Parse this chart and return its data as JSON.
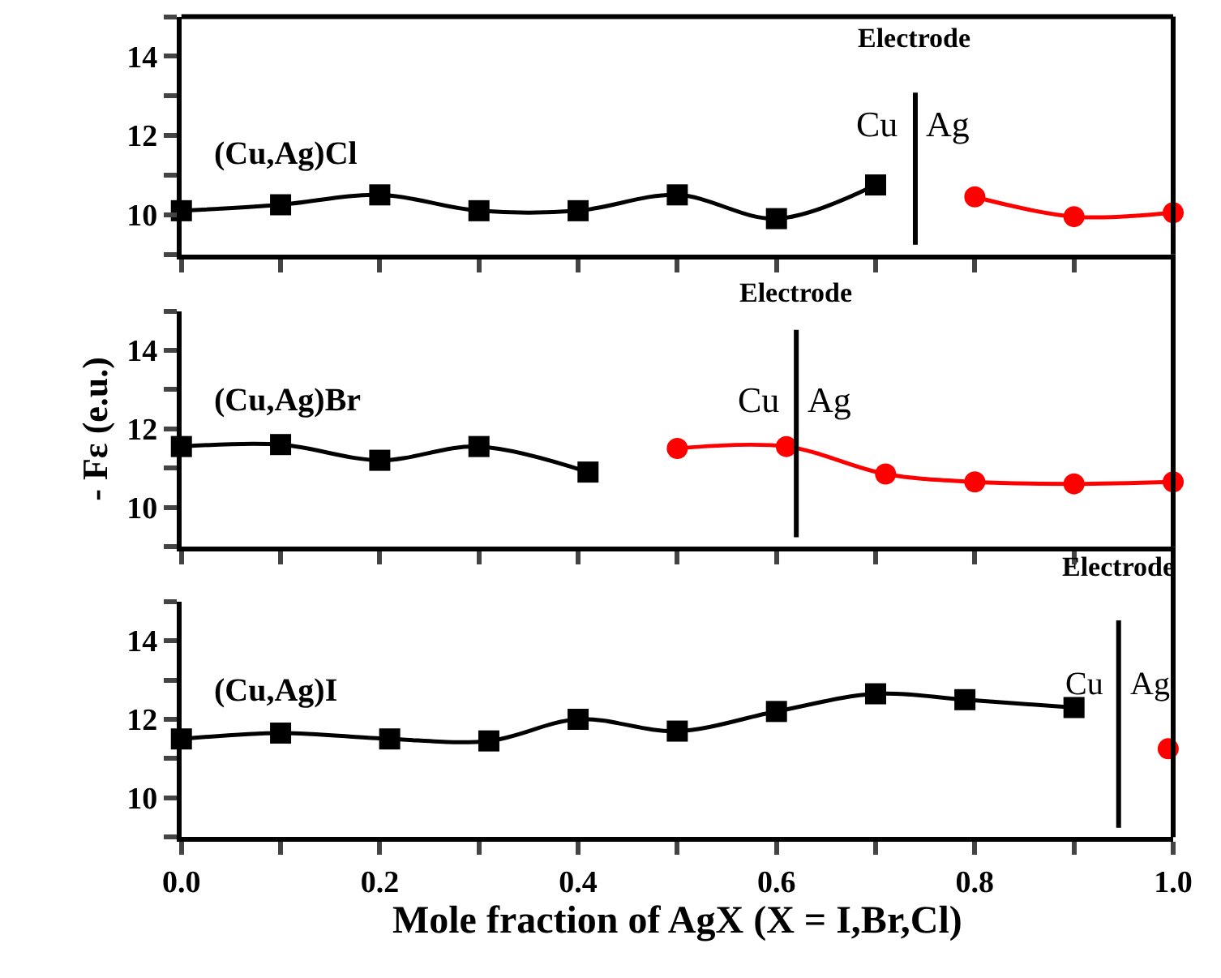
{
  "chart_data": [
    {
      "type": "line",
      "xlim": [
        0,
        1
      ],
      "ylim": [
        9,
        15
      ],
      "tick_labels": "y",
      "yticks": [
        {
          "value": 9,
          "label": null
        },
        10,
        {
          "value": 11,
          "label": null
        },
        12,
        {
          "value": 13,
          "label": null
        },
        14,
        {
          "value": 15,
          "label": null
        }
      ],
      "xticks": [
        {
          "value": 0,
          "label": null
        },
        {
          "value": 0.1,
          "label": null
        },
        {
          "value": 0.2,
          "label": null
        },
        {
          "value": 0.3,
          "label": null
        },
        {
          "value": 0.4,
          "label": null
        },
        {
          "value": 0.5,
          "label": null
        },
        {
          "value": 0.6,
          "label": null
        },
        {
          "value": 0.7,
          "label": null
        },
        {
          "value": 0.8,
          "label": null
        },
        {
          "value": 0.9,
          "label": null
        },
        {
          "value": 1,
          "label": null
        }
      ],
      "series": [
        {
          "color": "#000000",
          "marker": "square",
          "x": [
            0,
            0.1,
            0.2,
            0.3,
            0.4,
            0.5,
            0.6,
            0.7
          ],
          "values": [
            10.1,
            10.25,
            10.5,
            10.1,
            10.1,
            10.5,
            9.9,
            10.75
          ]
        },
        {
          "color": "#ff0000",
          "marker": "circle",
          "x": [
            0.8,
            0.9,
            1.0
          ],
          "values": [
            10.45,
            9.95,
            10.05
          ]
        }
      ],
      "ref_lines": [
        {
          "axis": "x",
          "value": 0.74,
          "label": "Electrode",
          "color": "#000000"
        }
      ],
      "annotations": [
        "(Cu,Ag)Cl",
        "Cu",
        "Ag"
      ]
    },
    {
      "type": "line",
      "xlim": [
        0,
        1
      ],
      "ylim": [
        9,
        15
      ],
      "tick_labels": "y",
      "ylabel": "- Fε (e.u.)",
      "yticks": [
        {
          "value": 9,
          "label": null
        },
        10,
        {
          "value": 11,
          "label": null
        },
        12,
        {
          "value": 13,
          "label": null
        },
        14,
        {
          "value": 15,
          "label": null
        }
      ],
      "xticks": [
        {
          "value": 0,
          "label": null
        },
        {
          "value": 0.1,
          "label": null
        },
        {
          "value": 0.2,
          "label": null
        },
        {
          "value": 0.3,
          "label": null
        },
        {
          "value": 0.4,
          "label": null
        },
        {
          "value": 0.5,
          "label": null
        },
        {
          "value": 0.6,
          "label": null
        },
        {
          "value": 0.7,
          "label": null
        },
        {
          "value": 0.8,
          "label": null
        },
        {
          "value": 0.9,
          "label": null
        },
        {
          "value": 1,
          "label": null
        }
      ],
      "series": [
        {
          "color": "#000000",
          "marker": "square",
          "x": [
            0,
            0.1,
            0.2,
            0.3,
            0.41
          ],
          "values": [
            11.55,
            11.6,
            11.2,
            11.55,
            10.9
          ]
        },
        {
          "color": "#ff0000",
          "marker": "circle",
          "x": [
            0.5,
            0.61,
            0.71,
            0.8,
            0.9,
            1.0
          ],
          "values": [
            11.5,
            11.55,
            10.85,
            10.65,
            10.6,
            10.65
          ]
        }
      ],
      "ref_lines": [
        {
          "axis": "x",
          "value": 0.62,
          "label": "Electrode",
          "color": "#000000"
        }
      ],
      "annotations": [
        "(Cu,Ag)Br",
        "Cu",
        "Ag"
      ]
    },
    {
      "type": "line",
      "xlim": [
        0,
        1
      ],
      "ylim": [
        9,
        15
      ],
      "xlabel": "Mole fraction of AgX (X = I,Br,Cl)",
      "yticks": [
        {
          "value": 9,
          "label": null
        },
        10,
        {
          "value": 11,
          "label": null
        },
        12,
        {
          "value": 13,
          "label": null
        },
        14,
        {
          "value": 15,
          "label": null
        }
      ],
      "xticks": [
        {
          "value": 0,
          "label": "0.0"
        },
        {
          "value": 0.1,
          "label": null
        },
        0.2,
        {
          "value": 0.3,
          "label": null
        },
        0.4,
        {
          "value": 0.5,
          "label": null
        },
        0.6,
        {
          "value": 0.7,
          "label": null
        },
        0.8,
        {
          "value": 0.9,
          "label": null
        },
        {
          "value": 1,
          "label": "1.0"
        }
      ],
      "series": [
        {
          "color": "#000000",
          "marker": "square",
          "x": [
            0,
            0.1,
            0.21,
            0.31,
            0.4,
            0.5,
            0.6,
            0.7,
            0.79,
            0.9
          ],
          "values": [
            11.5,
            11.65,
            11.5,
            11.45,
            12.0,
            11.7,
            12.2,
            12.65,
            12.5,
            12.3
          ]
        },
        {
          "color": "#ff0000",
          "marker": "circle",
          "x": [
            0.995
          ],
          "values": [
            11.25
          ]
        }
      ],
      "ref_lines": [
        {
          "axis": "x",
          "value": 0.945,
          "label": "Electrode",
          "color": "#000000"
        }
      ],
      "annotations": [
        "(Cu,Ag)I",
        "Cu",
        "Ag"
      ]
    }
  ]
}
